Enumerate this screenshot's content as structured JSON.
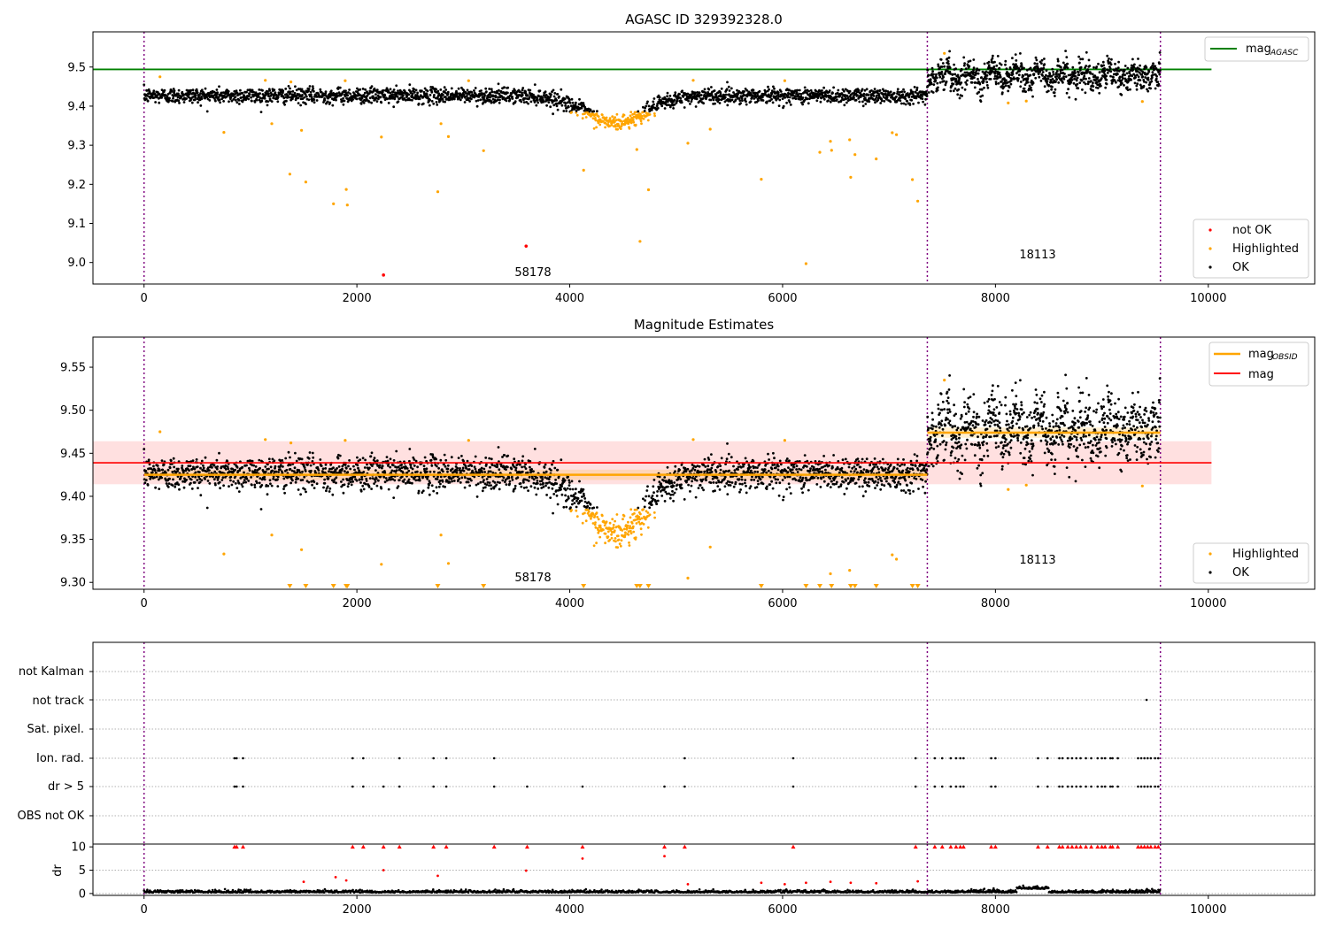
{
  "figure": {
    "top_title": "AGASC ID 329392328.0",
    "mid_title": "Magnitude Estimates"
  },
  "obsids": [
    {
      "label": "58178"
    },
    {
      "label": "18113"
    }
  ],
  "legends": {
    "top": {
      "mag_agasc": "mag",
      "mag_agasc_sub": "AGASC",
      "not_ok": "not OK",
      "highlighted": "Highlighted",
      "ok": "OK"
    },
    "mid": {
      "mag_obsid": "mag",
      "mag_obsid_sub": "OBSID",
      "mag": "mag",
      "highlighted": "Highlighted",
      "ok": "OK"
    }
  },
  "flags": {
    "rows": [
      "not Kalman",
      "not track",
      "Sat. pixel.",
      "Ion. rad.",
      "dr > 5",
      "OBS not OK"
    ],
    "dr_label": "dr"
  },
  "colors": {
    "ok": "#000000",
    "highlighted": "#ffa500",
    "not_ok": "#ff0000",
    "agasc": "#008000",
    "mag": "#ff0000",
    "obs_line": "#800080"
  },
  "chart_data": [
    {
      "type": "scatter",
      "title": "AGASC ID 329392328.0",
      "xlim": [
        -480,
        11000
      ],
      "ylim": [
        8.945,
        9.59
      ],
      "xticks": [
        0,
        2000,
        4000,
        6000,
        8000,
        10000
      ],
      "yticks": [
        9.0,
        9.1,
        9.2,
        9.3,
        9.4,
        9.5
      ],
      "obs_boundaries": [
        0,
        7360,
        9550
      ],
      "mag_agasc": 9.494,
      "series": [
        {
          "name": "OK",
          "segments": [
            {
              "x_range": [
                0,
                7360
              ],
              "baseline": 9.427,
              "scatter": 0.01,
              "dip": {
                "center": 4430,
                "width": 400,
                "depth": 0.07
              }
            },
            {
              "x_range": [
                7360,
                9550
              ],
              "baseline": 9.478,
              "scatter": 0.018
            }
          ]
        },
        {
          "name": "Highlighted",
          "points": [
            [
              150,
              9.475
            ],
            [
              750,
              9.333
            ],
            [
              1140,
              9.466
            ],
            [
              1200,
              9.355
            ],
            [
              1370,
              9.226
            ],
            [
              1380,
              9.462
            ],
            [
              1480,
              9.338
            ],
            [
              1520,
              9.206
            ],
            [
              1780,
              9.15
            ],
            [
              1890,
              9.465
            ],
            [
              1900,
              9.187
            ],
            [
              1910,
              9.147
            ],
            [
              2230,
              9.321
            ],
            [
              2760,
              9.181
            ],
            [
              2790,
              9.355
            ],
            [
              2860,
              9.322
            ],
            [
              3050,
              9.465
            ],
            [
              3190,
              9.286
            ],
            [
              4130,
              9.236
            ],
            [
              4630,
              9.289
            ],
            [
              4660,
              9.054
            ],
            [
              4740,
              9.186
            ],
            [
              5110,
              9.305
            ],
            [
              5160,
              9.466
            ],
            [
              5320,
              9.341
            ],
            [
              5800,
              9.213
            ],
            [
              6020,
              9.465
            ],
            [
              6220,
              8.997
            ],
            [
              6350,
              9.282
            ],
            [
              6450,
              9.31
            ],
            [
              6460,
              9.287
            ],
            [
              6630,
              9.314
            ],
            [
              6640,
              9.218
            ],
            [
              6680,
              9.276
            ],
            [
              6880,
              9.265
            ],
            [
              7030,
              9.332
            ],
            [
              7070,
              9.327
            ],
            [
              7220,
              9.212
            ],
            [
              7270,
              9.157
            ],
            [
              7520,
              9.535
            ],
            [
              8120,
              9.408
            ],
            [
              8290,
              9.413
            ],
            [
              9380,
              9.412
            ]
          ]
        },
        {
          "name": "not OK",
          "points": [
            [
              2250,
              8.968
            ],
            [
              3590,
              9.042
            ]
          ]
        }
      ]
    },
    {
      "type": "scatter",
      "title": "Magnitude Estimates",
      "xlim": [
        -480,
        11000
      ],
      "ylim": [
        9.292,
        9.585
      ],
      "xticks": [
        0,
        2000,
        4000,
        6000,
        8000,
        10000
      ],
      "yticks": [
        9.3,
        9.35,
        9.4,
        9.45,
        9.5,
        9.55
      ],
      "mag": 9.439,
      "mag_band": [
        9.414,
        9.464
      ],
      "mag_obsid": [
        {
          "x_range": [
            0,
            7360
          ],
          "value": 9.425
        },
        {
          "x_range": [
            7360,
            9550
          ],
          "value": 9.474
        }
      ],
      "series": [
        {
          "name": "OK",
          "note": "same observations as top panel"
        },
        {
          "name": "Highlighted",
          "note": "same observations as top panel; values below 9.30 shown as triangles at the axis bottom"
        }
      ]
    },
    {
      "type": "scatter",
      "title": "",
      "xlim": [
        -480,
        11000
      ],
      "categories": [
        "not Kalman",
        "not track",
        "Sat. pixel.",
        "Ion. rad.",
        "dr > 5",
        "OBS not OK"
      ],
      "flag_points": {
        "not track": [
          9420
        ],
        "Ion. rad.": [
          850,
          870,
          930,
          1960,
          2060,
          2400,
          2720,
          2840,
          3290,
          5080,
          6100,
          7250,
          7430,
          7500,
          7580,
          7630,
          7670,
          7700,
          7960,
          8000,
          8400,
          8490,
          8600,
          8630,
          8680,
          8720,
          8760,
          8800,
          8850,
          8900,
          8960,
          9000,
          9030,
          9080,
          9100,
          9150,
          9340,
          9370,
          9400,
          9430,
          9460,
          9500,
          9530
        ],
        "dr > 5": [
          850,
          870,
          930,
          1960,
          2060,
          2250,
          2400,
          2720,
          2840,
          3290,
          3600,
          4120,
          4890,
          5080,
          6100,
          7250,
          7430,
          7500,
          7580,
          7630,
          7670,
          7700,
          7960,
          8000,
          8400,
          8490,
          8600,
          8630,
          8680,
          8720,
          8760,
          8800,
          8850,
          8900,
          8960,
          9000,
          9030,
          9080,
          9100,
          9150,
          9340,
          9370,
          9400,
          9430,
          9460,
          9500,
          9530
        ]
      },
      "dr_ylim": [
        -0.4,
        10.6
      ],
      "dr_yticks": [
        0,
        5,
        10
      ],
      "dr_outliers": [
        [
          1500,
          2.5
        ],
        [
          1800,
          3.5
        ],
        [
          1900,
          2.8
        ],
        [
          2250,
          5.0
        ],
        [
          2760,
          3.8
        ],
        [
          3590,
          4.9
        ],
        [
          4120,
          7.5
        ],
        [
          4890,
          8.0
        ],
        [
          5110,
          2.0
        ],
        [
          5800,
          2.3
        ],
        [
          6020,
          2.0
        ],
        [
          6220,
          2.3
        ],
        [
          6450,
          2.5
        ],
        [
          6640,
          2.3
        ],
        [
          6880,
          2.2
        ],
        [
          7270,
          2.6
        ]
      ]
    }
  ]
}
